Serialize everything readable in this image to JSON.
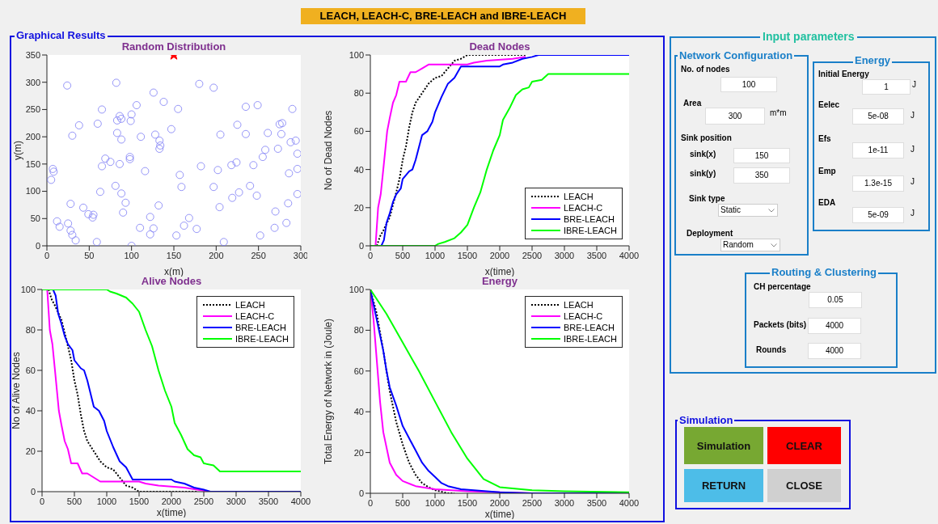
{
  "chart_data": [
    {
      "type": "scatter",
      "title": "Random Distribution",
      "xlabel": "x(m)",
      "ylabel": "y(m)",
      "xlim": [
        0,
        300
      ],
      "xticks": [
        0,
        50,
        100,
        150,
        200,
        250,
        300
      ],
      "ylim": [
        0,
        350
      ],
      "yticks": [
        0,
        50,
        100,
        150,
        200,
        250,
        300,
        350
      ],
      "series": [
        {
          "color": "#7b7bf5",
          "marker": "circle",
          "x": [
            24,
            82,
            180,
            197,
            126,
            65,
            138,
            106,
            155,
            235,
            249,
            290,
            38,
            60,
            86,
            83,
            88,
            99,
            100,
            147,
            225,
            275,
            278,
            30,
            83,
            88,
            111,
            128,
            133,
            134,
            133,
            205,
            235,
            261,
            277,
            288,
            294,
            258,
            273,
            255,
            296,
            7,
            8,
            5,
            69,
            75,
            65,
            86,
            98,
            98,
            116,
            157,
            182,
            202,
            218,
            224,
            244,
            286,
            296,
            81,
            63,
            88,
            159,
            197,
            240,
            219,
            227,
            248,
            296,
            28,
            43,
            93,
            132,
            204,
            285,
            270,
            49,
            55,
            54,
            90,
            122,
            168,
            12,
            15,
            25,
            28,
            30,
            34,
            59,
            100,
            110,
            122,
            126,
            153,
            162,
            177,
            209,
            252,
            269,
            283
          ],
          "values": [
            294,
            299,
            297,
            290,
            281,
            250,
            264,
            258,
            251,
            255,
            258,
            251,
            221,
            224,
            238,
            230,
            233,
            229,
            241,
            214,
            222,
            223,
            225,
            202,
            207,
            195,
            200,
            204,
            193,
            184,
            178,
            204,
            205,
            207,
            205,
            190,
            193,
            176,
            178,
            163,
            169,
            141,
            136,
            121,
            160,
            154,
            146,
            150,
            163,
            159,
            137,
            130,
            146,
            139,
            148,
            153,
            148,
            133,
            141,
            110,
            99,
            96,
            108,
            108,
            110,
            88,
            98,
            92,
            95,
            77,
            70,
            79,
            74,
            71,
            78,
            63,
            58,
            57,
            52,
            61,
            53,
            51,
            45,
            35,
            41,
            28,
            20,
            10,
            7,
            0,
            33,
            21,
            32,
            19,
            37,
            31,
            7,
            19,
            33,
            42
          ]
        },
        {
          "color": "#ff0000",
          "marker": "star",
          "x": [
            150
          ],
          "values": [
            350
          ]
        }
      ]
    },
    {
      "type": "line",
      "title": "Dead Nodes",
      "xlabel": "x(time)",
      "ylabel": "No of Dead Nodes",
      "xlim": [
        0,
        4000
      ],
      "xticks": [
        0,
        500,
        1000,
        1500,
        2000,
        2500,
        3000,
        3500,
        4000
      ],
      "ylim": [
        0,
        100
      ],
      "yticks": [
        0,
        20,
        40,
        60,
        80,
        100
      ],
      "legend": "bottom right",
      "series": [
        {
          "name": "LEACH",
          "color": "#000000",
          "line_style": "dotted",
          "x": [
            100,
            150,
            200,
            300,
            400,
            450,
            500,
            550,
            600,
            650,
            700,
            800,
            900,
            1000,
            1100,
            1200,
            1300,
            1400,
            1500,
            2400
          ],
          "values": [
            0,
            5,
            8,
            15,
            28,
            35,
            45,
            52,
            62,
            70,
            75,
            80,
            85,
            88,
            89,
            93,
            97,
            98,
            100,
            100
          ]
        },
        {
          "name": "LEACH-C",
          "color": "#ff00ff",
          "x": [
            80,
            120,
            160,
            200,
            230,
            260,
            300,
            350,
            400,
            450,
            550,
            620,
            700,
            800,
            900,
            1500,
            1600,
            1800,
            2200,
            2400
          ],
          "values": [
            0,
            20,
            27,
            40,
            50,
            60,
            67,
            75,
            79,
            86,
            86,
            91,
            91,
            93,
            95,
            95,
            96,
            97,
            98,
            99
          ]
        },
        {
          "name": "BRE-LEACH",
          "color": "#0000ff",
          "x": [
            170,
            210,
            250,
            300,
            350,
            400,
            470,
            500,
            600,
            650,
            700,
            800,
            880,
            960,
            1000,
            1100,
            1200,
            1300,
            1400,
            2000,
            2050,
            2200,
            2350,
            2500,
            2600,
            4000
          ],
          "values": [
            0,
            3,
            12,
            17,
            23,
            27,
            30,
            35,
            39,
            40,
            45,
            58,
            60,
            65,
            70,
            78,
            85,
            88,
            94,
            94,
            95,
            96,
            98,
            99,
            100,
            100
          ]
        },
        {
          "name": "IBRE-LEACH",
          "color": "#00ff00",
          "x": [
            0,
            1000,
            1050,
            1150,
            1300,
            1400,
            1500,
            1600,
            1700,
            1800,
            1900,
            2000,
            2050,
            2150,
            2250,
            2350,
            2450,
            2500,
            2650,
            2750,
            4000
          ],
          "values": [
            0,
            0,
            1,
            2,
            4,
            7,
            11,
            20,
            28,
            40,
            50,
            58,
            66,
            72,
            79,
            82,
            83,
            86,
            87,
            90,
            90
          ]
        }
      ]
    },
    {
      "type": "line",
      "title": "Alive Nodes",
      "xlabel": "x(time)",
      "ylabel": "No of Alive Nodes",
      "xlim": [
        0,
        4000
      ],
      "xticks": [
        0,
        500,
        1000,
        1500,
        2000,
        2500,
        3000,
        3500,
        4000
      ],
      "ylim": [
        0,
        100
      ],
      "yticks": [
        0,
        20,
        40,
        60,
        80,
        100
      ],
      "legend": "top right",
      "series": [
        {
          "name": "LEACH",
          "color": "#000000",
          "line_style": "dotted",
          "x": [
            100,
            150,
            200,
            300,
            400,
            450,
            500,
            550,
            600,
            650,
            700,
            800,
            900,
            1000,
            1100,
            1200,
            1300,
            1400,
            1500,
            2400
          ],
          "values": [
            100,
            95,
            92,
            85,
            72,
            65,
            55,
            48,
            38,
            30,
            25,
            20,
            15,
            12,
            11,
            7,
            3,
            2,
            0,
            0
          ]
        },
        {
          "name": "LEACH-C",
          "color": "#ff00ff",
          "x": [
            80,
            120,
            160,
            200,
            230,
            260,
            300,
            350,
            400,
            450,
            550,
            620,
            700,
            800,
            900,
            1500,
            1600,
            1800,
            2200,
            2400,
            2600,
            4000
          ],
          "values": [
            100,
            80,
            73,
            60,
            50,
            40,
            33,
            25,
            21,
            14,
            14,
            9,
            9,
            7,
            5,
            5,
            4,
            3,
            2,
            1,
            0,
            0
          ]
        },
        {
          "name": "BRE-LEACH",
          "color": "#0000ff",
          "x": [
            170,
            210,
            250,
            300,
            350,
            400,
            470,
            500,
            600,
            650,
            700,
            800,
            880,
            960,
            1000,
            1100,
            1200,
            1300,
            1400,
            2000,
            2050,
            2200,
            2350,
            2500,
            2600,
            4000
          ],
          "values": [
            100,
            97,
            88,
            83,
            77,
            73,
            70,
            65,
            61,
            60,
            55,
            42,
            40,
            35,
            30,
            22,
            15,
            12,
            6,
            6,
            5,
            4,
            2,
            1,
            0,
            0
          ]
        },
        {
          "name": "IBRE-LEACH",
          "color": "#00ff00",
          "x": [
            0,
            1000,
            1050,
            1150,
            1300,
            1400,
            1500,
            1600,
            1700,
            1800,
            1900,
            2000,
            2050,
            2150,
            2250,
            2350,
            2450,
            2500,
            2650,
            2750,
            4000
          ],
          "values": [
            100,
            100,
            99,
            98,
            96,
            93,
            89,
            80,
            72,
            60,
            50,
            42,
            34,
            28,
            21,
            18,
            17,
            14,
            13,
            10,
            10
          ]
        }
      ]
    },
    {
      "type": "line",
      "title": "Energy",
      "xlabel": "x(time)",
      "ylabel": "Total Energy of Network in (Joule)",
      "xlim": [
        0,
        4000
      ],
      "xticks": [
        0,
        500,
        1000,
        1500,
        2000,
        2500,
        3000,
        3500,
        4000
      ],
      "ylim": [
        0,
        100
      ],
      "yticks": [
        0,
        20,
        40,
        60,
        80,
        100
      ],
      "legend": "top right",
      "series": [
        {
          "name": "LEACH",
          "color": "#000000",
          "line_style": "dotted",
          "x": [
            0,
            100,
            200,
            300,
            400,
            500,
            600,
            700,
            800,
            900,
            1000,
            1200,
            1300
          ],
          "values": [
            100,
            88,
            70,
            50,
            35,
            24,
            15,
            9,
            5,
            3,
            1.5,
            0,
            0
          ]
        },
        {
          "name": "LEACH-C",
          "color": "#ff00ff",
          "x": [
            0,
            50,
            100,
            150,
            200,
            300,
            400,
            500,
            700,
            1000,
            1500,
            2000,
            2500,
            4000
          ],
          "values": [
            100,
            85,
            65,
            45,
            30,
            15,
            9,
            6,
            3.5,
            2,
            1,
            0.5,
            0,
            0
          ]
        },
        {
          "name": "BRE-LEACH",
          "color": "#0000ff",
          "x": [
            0,
            100,
            200,
            250,
            300,
            400,
            500,
            600,
            700,
            800,
            900,
            1000,
            1100,
            1200,
            1400,
            1600,
            2000,
            2500,
            4000
          ],
          "values": [
            100,
            85,
            70,
            60,
            52,
            43,
            33,
            27,
            21,
            15,
            11,
            8,
            5,
            3.5,
            2,
            1.5,
            0.5,
            0,
            0
          ]
        },
        {
          "name": "IBRE-LEACH",
          "color": "#00ff00",
          "x": [
            0,
            250,
            500,
            750,
            1000,
            1250,
            1500,
            1750,
            2000,
            2500,
            3000,
            4000
          ],
          "values": [
            100,
            88,
            74,
            60,
            45,
            30,
            17,
            7,
            3,
            1.5,
            1,
            0.5
          ]
        }
      ]
    },
    {
      "type": "other",
      "title": "Input parameters",
      "annotations": [
        "LEACH, LEACH-C, BRE-LEACH and IBRE-LEACH",
        "Graphical Results",
        "Network Configuration",
        "No. of nodes",
        "100",
        "Area",
        "300",
        "m*m",
        "Sink position",
        "sink(x)",
        "150",
        "sink(y)",
        "350",
        "Sink type",
        "Static",
        "Deployment",
        "Random",
        "Energy",
        "Initial Energy",
        "1",
        "J",
        "Eelec",
        "5e-08",
        "J",
        "Efs",
        "1e-11",
        "J",
        "Emp",
        "1.3e-15",
        "J",
        "EDA",
        "5e-09",
        "J",
        "Routing & Clustering",
        "CH percentage",
        "0.05",
        "Packets (bits)",
        "4000",
        "Rounds",
        "4000",
        "Simulation",
        "Simulation",
        "CLEAR",
        "RETURN",
        "CLOSE"
      ]
    }
  ]
}
